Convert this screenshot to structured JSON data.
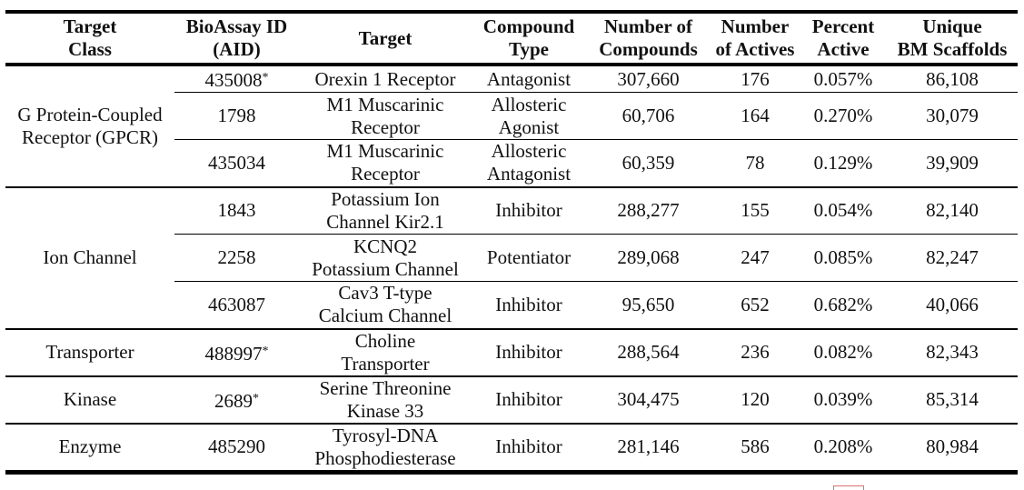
{
  "columns": [
    [
      "Target",
      "Class"
    ],
    [
      "BioAssay ID",
      "(AID)"
    ],
    [
      "Target"
    ],
    [
      "Compound",
      "Type"
    ],
    [
      "Number of",
      "Compounds"
    ],
    [
      "Number",
      "of Actives"
    ],
    [
      "Percent",
      "Active"
    ],
    [
      "Unique",
      "BM Scaffolds"
    ]
  ],
  "groups": [
    {
      "class_lines": [
        "G Protein-Coupled",
        "Receptor (GPCR)"
      ],
      "rows": [
        {
          "aid": "435008",
          "aid_mark": "*",
          "target": [
            "Orexin 1 Receptor"
          ],
          "type": [
            "Antagonist"
          ],
          "compounds": "307,660",
          "actives": "176",
          "percent": "0.057%",
          "scaffolds": "86,108"
        },
        {
          "aid": "1798",
          "aid_mark": "",
          "target": [
            "M1 Muscarinic",
            "Receptor"
          ],
          "type": [
            "Allosteric",
            "Agonist"
          ],
          "compounds": "60,706",
          "actives": "164",
          "percent": "0.270%",
          "scaffolds": "30,079"
        },
        {
          "aid": "435034",
          "aid_mark": "",
          "target": [
            "M1 Muscarinic",
            "Receptor"
          ],
          "type": [
            "Allosteric",
            "Antagonist"
          ],
          "compounds": "60,359",
          "actives": "78",
          "percent": "0.129%",
          "scaffolds": "39,909"
        }
      ]
    },
    {
      "class_lines": [
        "Ion Channel"
      ],
      "rows": [
        {
          "aid": "1843",
          "aid_mark": "",
          "target": [
            "Potassium Ion",
            "Channel Kir2.1"
          ],
          "type": [
            "Inhibitor"
          ],
          "compounds": "288,277",
          "actives": "155",
          "percent": "0.054%",
          "scaffolds": "82,140"
        },
        {
          "aid": "2258",
          "aid_mark": "",
          "target": [
            "KCNQ2",
            "Potassium Channel"
          ],
          "type": [
            "Potentiator"
          ],
          "compounds": "289,068",
          "actives": "247",
          "percent": "0.085%",
          "scaffolds": "82,247"
        },
        {
          "aid": "463087",
          "aid_mark": "",
          "target": [
            "Cav3 T-type",
            "Calcium Channel"
          ],
          "type": [
            "Inhibitor"
          ],
          "compounds": "95,650",
          "actives": "652",
          "percent": "0.682%",
          "scaffolds": "40,066"
        }
      ]
    },
    {
      "class_lines": [
        "Transporter"
      ],
      "rows": [
        {
          "aid": "488997",
          "aid_mark": "*",
          "target": [
            "Choline",
            "Transporter"
          ],
          "type": [
            "Inhibitor"
          ],
          "compounds": "288,564",
          "actives": "236",
          "percent": "0.082%",
          "scaffolds": "82,343"
        }
      ]
    },
    {
      "class_lines": [
        "Kinase"
      ],
      "rows": [
        {
          "aid": "2689",
          "aid_mark": "*",
          "target": [
            "Serine Threonine",
            "Kinase 33"
          ],
          "type": [
            "Inhibitor"
          ],
          "compounds": "304,475",
          "actives": "120",
          "percent": "0.039%",
          "scaffolds": "85,314"
        }
      ]
    },
    {
      "class_lines": [
        "Enzyme"
      ],
      "rows": [
        {
          "aid": "485290",
          "aid_mark": "",
          "target": [
            "Tyrosyl-DNA",
            "Phosphodiesterase"
          ],
          "type": [
            "Inhibitor"
          ],
          "compounds": "281,146",
          "actives": "586",
          "percent": "0.208%",
          "scaffolds": "80,984"
        }
      ]
    }
  ]
}
